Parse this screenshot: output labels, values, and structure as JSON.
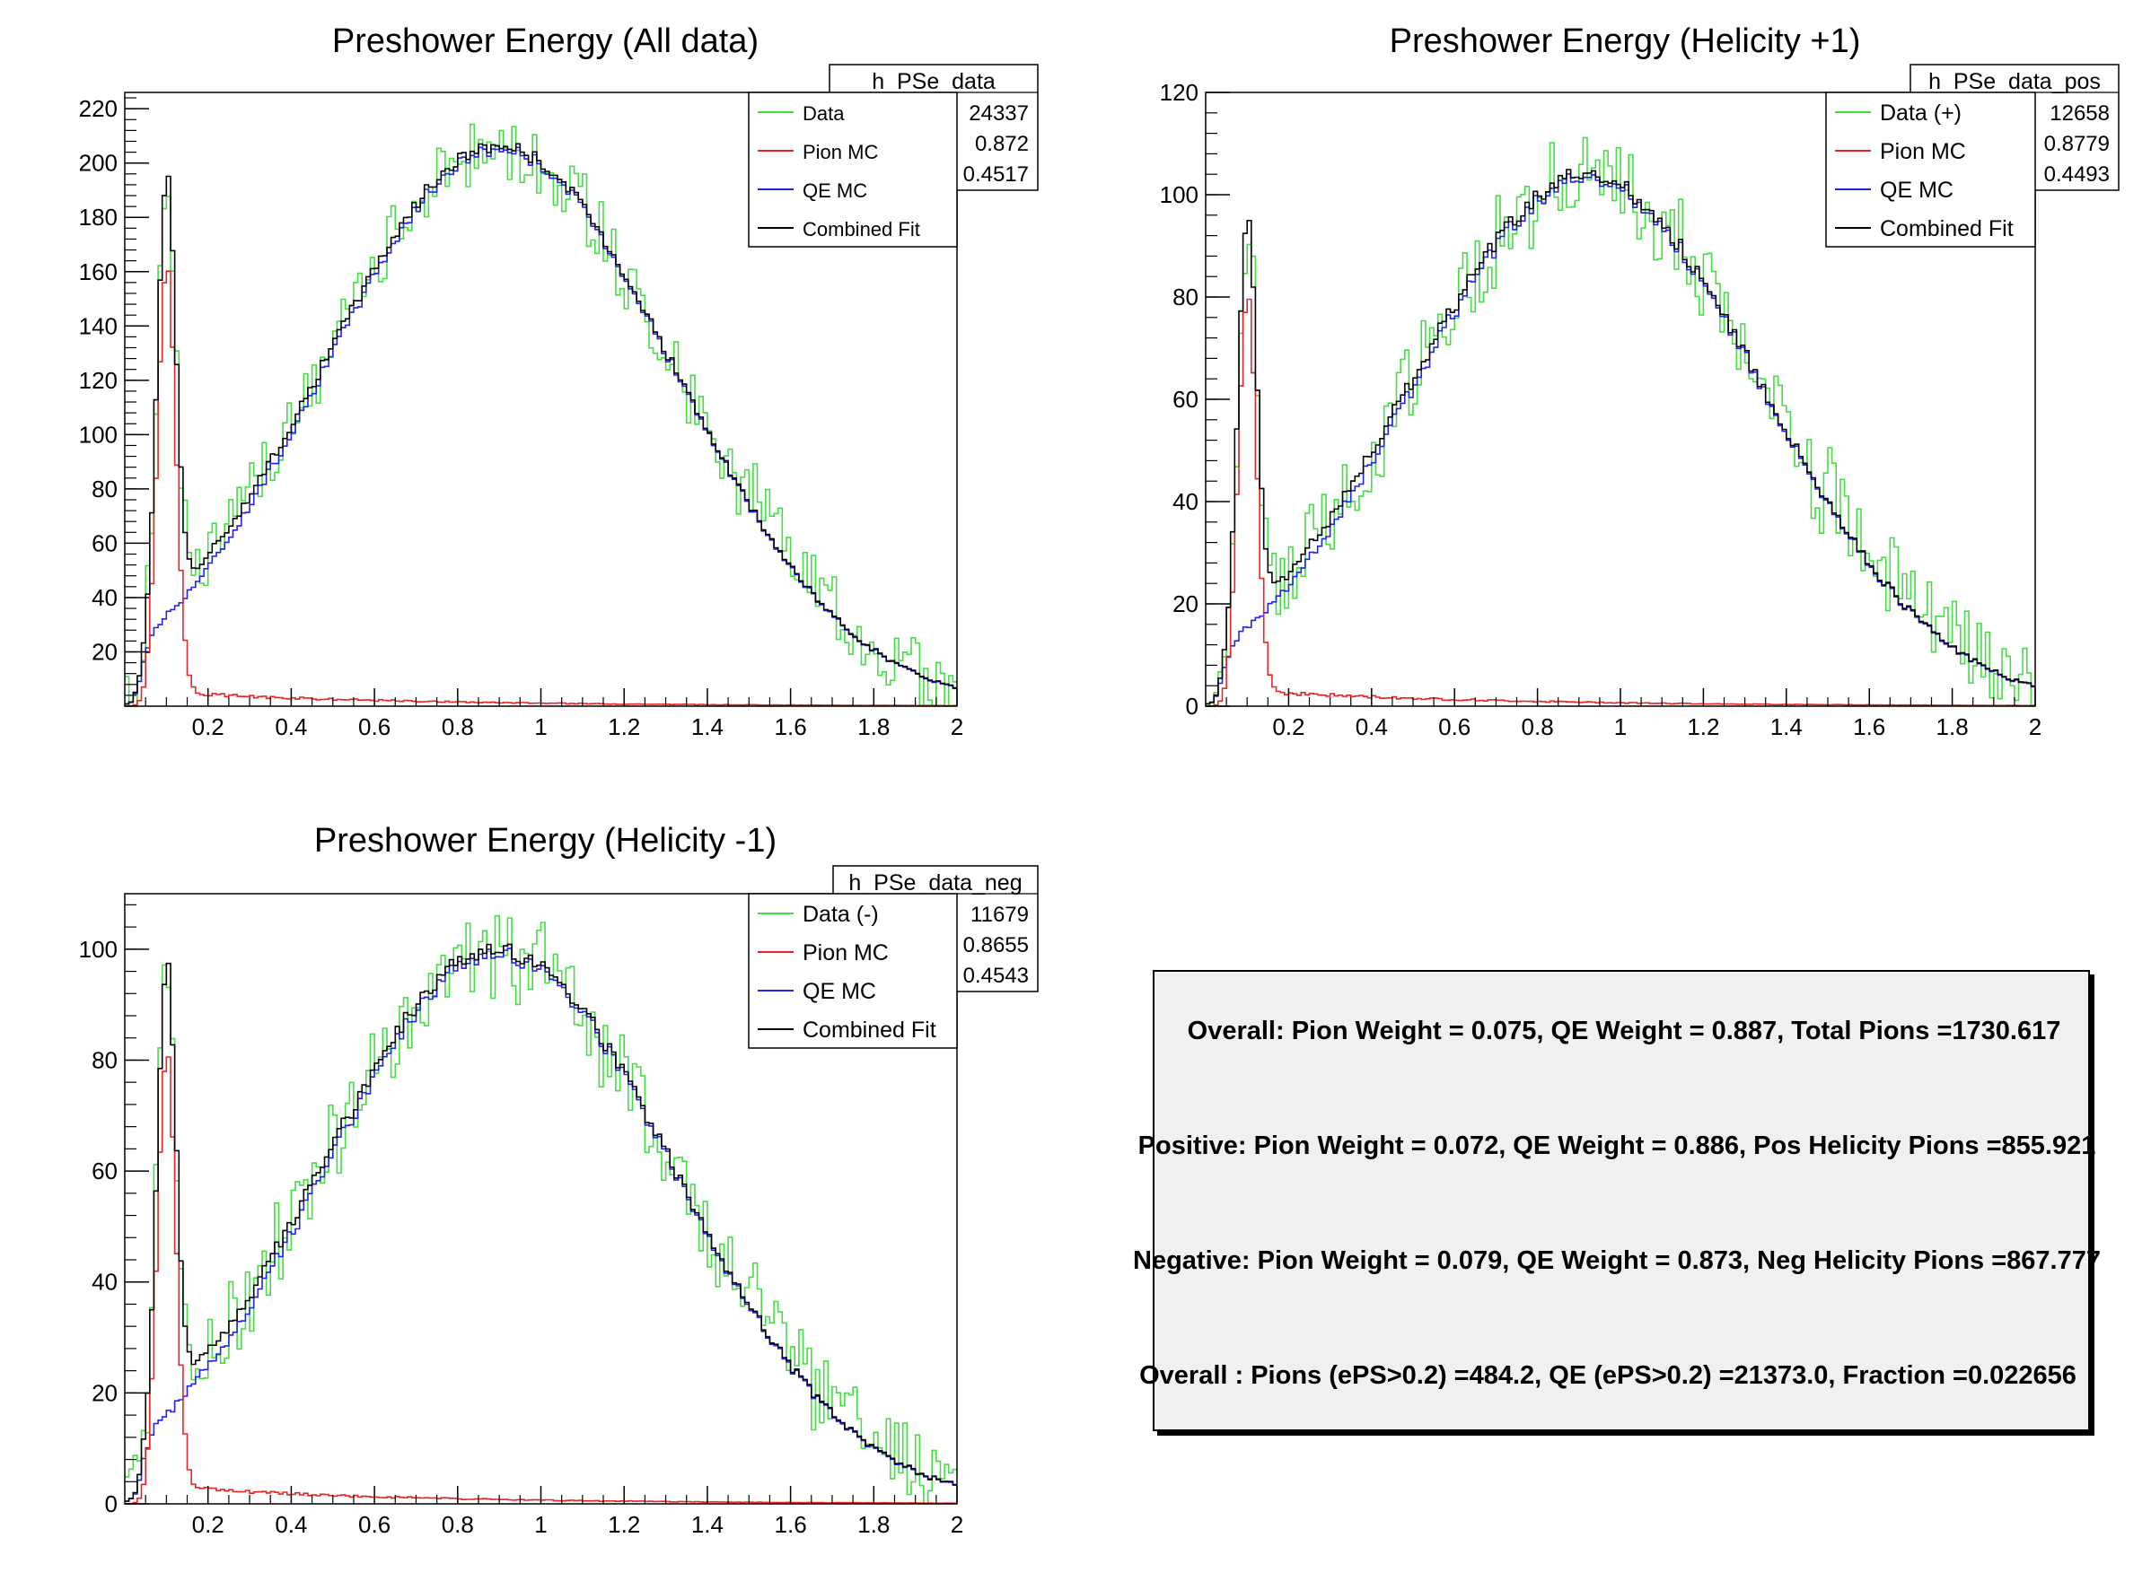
{
  "colors": {
    "data": "#44dd44",
    "pion": "#ee2222",
    "qe": "#2222ee",
    "combined": "#000000",
    "pane_background": "#f0f0f0"
  },
  "chart_data": [
    {
      "type": "histogram",
      "title": "Preshower Energy (All data)",
      "stats_box": {
        "name": "h_PSe_data",
        "entries": "24337",
        "mean": "0.872",
        "std_dev": "0.4517"
      },
      "legend": [
        "Data",
        "Pion MC",
        "QE MC",
        "Combined Fit"
      ],
      "legend_position": "top-right",
      "xlim": [
        0,
        2
      ],
      "ylim": [
        0,
        226
      ],
      "x_ticks": [
        "0.2",
        "0.4",
        "0.6",
        "0.8",
        "1",
        "1.2",
        "1.4",
        "1.6",
        "1.8",
        "2"
      ],
      "y_ticks": [
        "20",
        "40",
        "60",
        "80",
        "100",
        "120",
        "140",
        "160",
        "180",
        "200",
        "220"
      ],
      "bins": 200,
      "peak": {
        "pion_x": 0.1,
        "pion_height": 160,
        "qe_center": 0.9,
        "qe_height": 205,
        "qe_width": 0.42,
        "tail": 5
      },
      "data_noise": 12
    },
    {
      "type": "histogram",
      "title": "Preshower Energy (Helicity +1)",
      "stats_box": {
        "name": "h_PSe_data_pos",
        "entries": "12658",
        "mean": "0.8779",
        "std_dev": "0.4493"
      },
      "legend": [
        "Data (+)",
        "Pion MC",
        "QE MC",
        "Combined Fit"
      ],
      "legend_position": "top-right",
      "xlim": [
        0,
        2
      ],
      "ylim": [
        0,
        120
      ],
      "x_ticks": [
        "0.2",
        "0.4",
        "0.6",
        "0.8",
        "1",
        "1.2",
        "1.4",
        "1.6",
        "1.8",
        "2"
      ],
      "y_ticks": [
        "0",
        "20",
        "40",
        "60",
        "80",
        "100",
        "120"
      ],
      "bins": 200,
      "peak": {
        "pion_x": 0.1,
        "pion_height": 79,
        "qe_center": 0.92,
        "qe_height": 103,
        "qe_width": 0.42,
        "tail": 3
      },
      "data_noise": 8
    },
    {
      "type": "histogram",
      "title": "Preshower Energy (Helicity -1)",
      "stats_box": {
        "name": "h_PSe_data_neg",
        "entries": "11679",
        "mean": "0.8655",
        "std_dev": "0.4543"
      },
      "legend": [
        "Data (-)",
        "Pion MC",
        "QE MC",
        "Combined Fit"
      ],
      "legend_position": "top-right",
      "xlim": [
        0,
        2
      ],
      "ylim": [
        0,
        110
      ],
      "x_ticks": [
        "0.2",
        "0.4",
        "0.6",
        "0.8",
        "1",
        "1.2",
        "1.4",
        "1.6",
        "1.8",
        "2"
      ],
      "y_ticks": [
        "0",
        "20",
        "40",
        "60",
        "80",
        "100"
      ],
      "bins": 200,
      "peak": {
        "pion_x": 0.1,
        "pion_height": 80,
        "qe_center": 0.9,
        "qe_height": 99,
        "qe_width": 0.42,
        "tail": 3
      },
      "data_noise": 8
    }
  ],
  "info_pane": {
    "line1": "Overall:   Pion Weight = 0.075, QE Weight = 0.887, Total Pions =1730.617",
    "line2": "Positive:  Pion Weight = 0.072, QE Weight = 0.886, Pos Helicity Pions =855.921",
    "line3": "Negative:  Pion Weight = 0.079, QE Weight = 0.873, Neg Helicity Pions =867.777",
    "line4": "Overall : Pions (ePS>0.2) =484.2, QE (ePS>0.2) =21373.0, Fraction =0.022656"
  }
}
